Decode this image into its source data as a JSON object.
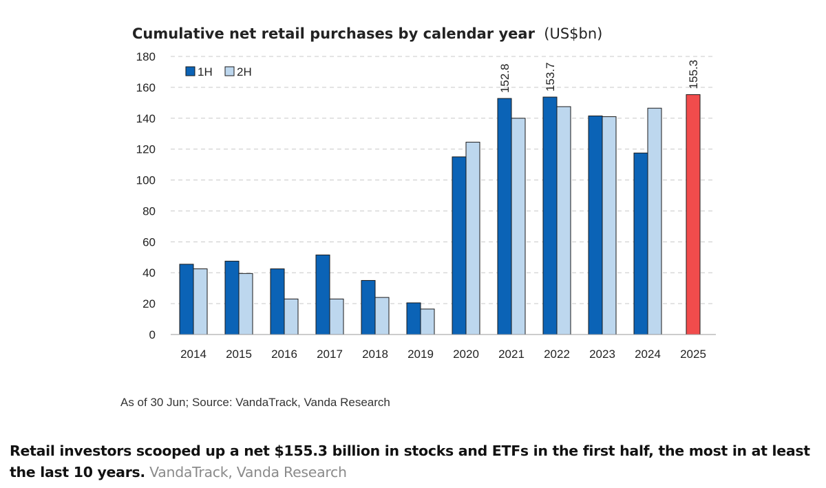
{
  "chart_data": {
    "type": "bar",
    "title": "Cumulative net retail purchases by calendar year",
    "title_unit": "(US$bn)",
    "categories": [
      "2014",
      "2015",
      "2016",
      "2017",
      "2018",
      "2019",
      "2020",
      "2021",
      "2022",
      "2023",
      "2024",
      "2025"
    ],
    "series": [
      {
        "name": "1H",
        "color": "#0b63b6",
        "values": [
          45.5,
          47.5,
          42.5,
          51.5,
          35,
          20.5,
          115,
          152.8,
          153.7,
          141.5,
          117.5,
          null
        ]
      },
      {
        "name": "2H",
        "color": "#bdd7ee",
        "values": [
          42.5,
          39.5,
          23,
          23,
          24,
          16.5,
          124.5,
          140,
          147.5,
          141,
          146.5,
          null
        ]
      }
    ],
    "highlight": {
      "category": "2025",
      "value": 155.3,
      "color": "#f14c4c"
    },
    "data_labels": [
      {
        "category": "2021",
        "series": "1H",
        "text": "152.8"
      },
      {
        "category": "2022",
        "series": "1H",
        "text": "153.7"
      },
      {
        "category": "2025",
        "series": "highlight",
        "text": "155.3"
      }
    ],
    "yticks": [
      "0",
      "20",
      "40",
      "60",
      "80",
      "100",
      "120",
      "140",
      "160",
      "180"
    ],
    "ylim": [
      0,
      180
    ],
    "grid": "horizontal-dashed",
    "legend_position": "top-left",
    "xlabel": "",
    "ylabel": ""
  },
  "source_note": "As of 30 Jun; Source: VandaTrack, Vanda Research",
  "caption": {
    "text": "Retail investors scooped up a net $155.3 billion in stocks and ETFs in the first half, the most in at least the last 10 years.",
    "credit": "VandaTrack, Vanda Research"
  }
}
